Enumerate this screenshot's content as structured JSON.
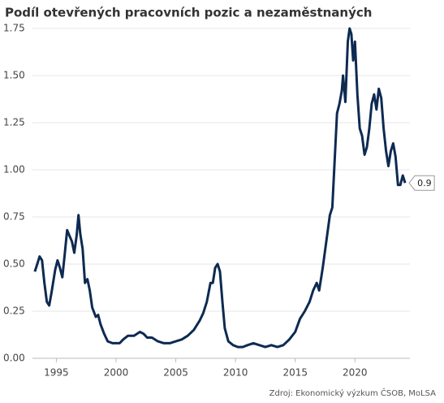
{
  "chart_data": {
    "type": "line",
    "title": "Podíl otevřených pracovních pozic a nezaměstnaných",
    "source": "Zdroj: Ekonomický výzkum ČSOB, MoLSA",
    "end_label": "0.9",
    "color": "#0d2a52",
    "grid": true,
    "xlim": [
      1993,
      2024.6
    ],
    "xticks": [
      1995,
      2000,
      2005,
      2010,
      2015,
      2020
    ],
    "ylim": [
      0,
      1.75
    ],
    "yticks": [
      {
        "value": 0,
        "label": "0.00"
      },
      {
        "value": 0.25,
        "label": "0.25"
      },
      {
        "value": 0.5,
        "label": "0.50"
      },
      {
        "value": 0.75,
        "label": "0.75"
      },
      {
        "value": 1,
        "label": "1.00"
      },
      {
        "value": 1.25,
        "label": "1.25"
      },
      {
        "value": 1.5,
        "label": "1.50"
      },
      {
        "value": 1.75,
        "label": "1.75"
      }
    ],
    "x": [
      1993.2,
      1993.4,
      1993.6,
      1993.8,
      1994.0,
      1994.2,
      1994.4,
      1994.6,
      1994.9,
      1995.1,
      1995.3,
      1995.5,
      1995.7,
      1995.9,
      1996.1,
      1996.3,
      1996.5,
      1996.7,
      1996.85,
      1997.0,
      1997.2,
      1997.4,
      1997.6,
      1997.8,
      1998.0,
      1998.3,
      1998.5,
      1998.7,
      1999.0,
      1999.3,
      1999.7,
      2000.0,
      2000.3,
      2000.6,
      2001.0,
      2001.5,
      2002.0,
      2002.3,
      2002.6,
      2003.0,
      2003.5,
      2004.0,
      2004.5,
      2005.0,
      2005.5,
      2006.0,
      2006.5,
      2007.0,
      2007.3,
      2007.6,
      2007.9,
      2008.1,
      2008.3,
      2008.5,
      2008.7,
      2008.9,
      2009.1,
      2009.4,
      2009.8,
      2010.2,
      2010.6,
      2011.0,
      2011.5,
      2012.0,
      2012.5,
      2013.0,
      2013.5,
      2014.0,
      2014.5,
      2015.0,
      2015.4,
      2015.8,
      2016.2,
      2016.5,
      2016.8,
      2017.0,
      2017.3,
      2017.6,
      2017.9,
      2018.1,
      2018.3,
      2018.5,
      2018.7,
      2018.9,
      2019.0,
      2019.2,
      2019.4,
      2019.55,
      2019.7,
      2019.85,
      2020.0,
      2020.2,
      2020.4,
      2020.6,
      2020.8,
      2021.0,
      2021.2,
      2021.4,
      2021.6,
      2021.8,
      2022.0,
      2022.2,
      2022.4,
      2022.6,
      2022.8,
      2023.0,
      2023.2,
      2023.4,
      2023.6,
      2023.8,
      2024.0,
      2024.2
    ],
    "values": [
      0.46,
      0.5,
      0.54,
      0.52,
      0.4,
      0.3,
      0.28,
      0.35,
      0.47,
      0.52,
      0.48,
      0.43,
      0.55,
      0.68,
      0.65,
      0.62,
      0.56,
      0.65,
      0.76,
      0.66,
      0.58,
      0.4,
      0.42,
      0.36,
      0.27,
      0.22,
      0.23,
      0.18,
      0.13,
      0.09,
      0.08,
      0.08,
      0.08,
      0.1,
      0.12,
      0.12,
      0.14,
      0.13,
      0.11,
      0.11,
      0.09,
      0.08,
      0.08,
      0.09,
      0.1,
      0.12,
      0.15,
      0.2,
      0.24,
      0.3,
      0.4,
      0.4,
      0.48,
      0.5,
      0.46,
      0.3,
      0.16,
      0.09,
      0.07,
      0.06,
      0.06,
      0.07,
      0.08,
      0.07,
      0.06,
      0.07,
      0.06,
      0.07,
      0.1,
      0.14,
      0.21,
      0.25,
      0.3,
      0.36,
      0.4,
      0.36,
      0.48,
      0.62,
      0.76,
      0.8,
      1.05,
      1.3,
      1.35,
      1.42,
      1.5,
      1.36,
      1.68,
      1.75,
      1.72,
      1.58,
      1.68,
      1.4,
      1.22,
      1.18,
      1.08,
      1.12,
      1.22,
      1.35,
      1.4,
      1.32,
      1.43,
      1.38,
      1.22,
      1.1,
      1.02,
      1.1,
      1.14,
      1.07,
      0.92,
      0.92,
      0.97,
      0.93
    ]
  }
}
